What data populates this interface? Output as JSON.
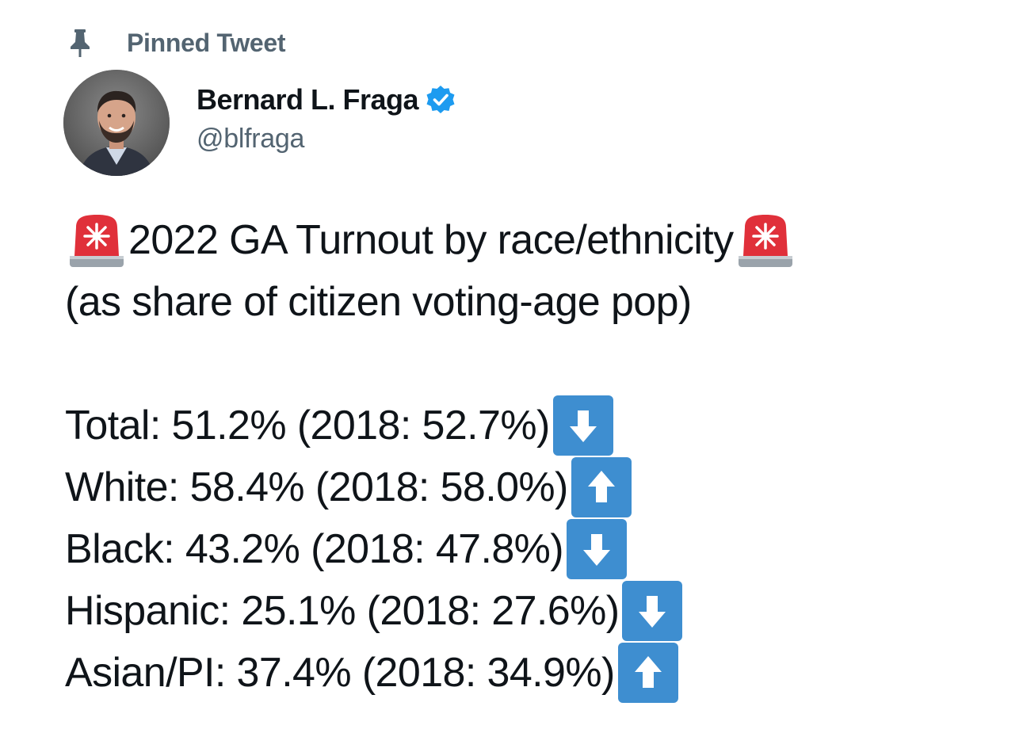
{
  "pinned": {
    "label": "Pinned Tweet",
    "icon": "pin-icon"
  },
  "author": {
    "name": "Bernard L. Fraga",
    "handle": "@blfraga",
    "verified": true,
    "verified_color": "#1d9bf0"
  },
  "tweet": {
    "headline": "2022 GA Turnout by race/ethnicity",
    "subhead": "(as share of citizen voting-age pop)",
    "headline_icon": "siren-emoji",
    "rows": [
      {
        "text": "Total: 51.2% (2018: 52.7%)",
        "trend": "down"
      },
      {
        "text": "White: 58.4% (2018: 58.0%)",
        "trend": "up"
      },
      {
        "text": "Black: 43.2% (2018: 47.8%)",
        "trend": "down"
      },
      {
        "text": "Hispanic: 25.1% (2018: 27.6%)",
        "trend": "down"
      },
      {
        "text": "Asian/PI: 37.4% (2018: 34.9%)",
        "trend": "up"
      }
    ]
  },
  "colors": {
    "text_primary": "#0f1419",
    "text_secondary": "#536471",
    "arrow_box": "#3e8ed0",
    "siren_red": "#e0303a"
  }
}
